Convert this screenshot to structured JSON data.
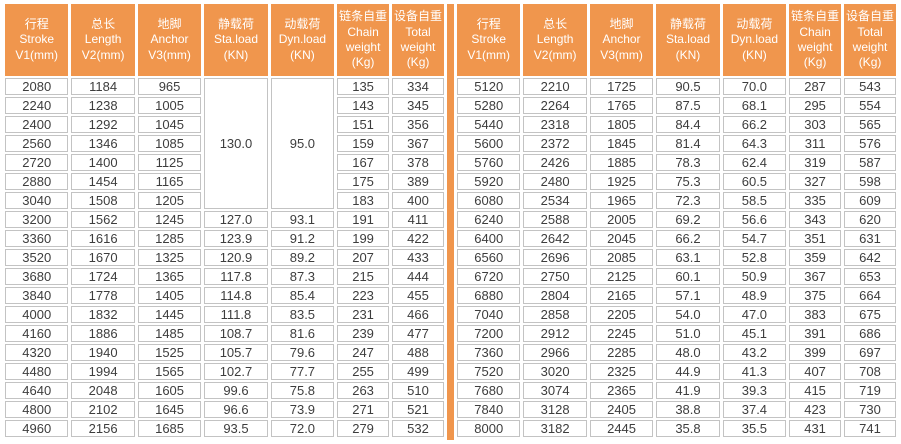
{
  "colors": {
    "header_bg": "#F0964D",
    "divider": "#F0964D",
    "cell_border": "#C3C3C3",
    "header_text": "#FFFFFF",
    "cell_text": "#3D3D3D"
  },
  "headers": [
    {
      "zh": "行程",
      "en": "Stroke",
      "unit": "V1(mm)"
    },
    {
      "zh": "总长",
      "en": "Length",
      "unit": "V2(mm)"
    },
    {
      "zh": "地脚",
      "en": "Anchor",
      "unit": "V3(mm)"
    },
    {
      "zh": "静载荷",
      "en": "Sta.load",
      "unit": "(KN)"
    },
    {
      "zh": "动载荷",
      "en": "Dyn.load",
      "unit": "(KN)"
    },
    {
      "zh": "链条自重",
      "en": "Chain weight",
      "unit": "(Kg)"
    },
    {
      "zh": "设备自重",
      "en": "Total weight",
      "unit": "(Kg)"
    }
  ],
  "left_table": {
    "merged_block": {
      "start_row": 0,
      "row_count": 7,
      "sta_load": "130.0",
      "dyn_load": "95.0"
    },
    "rows": [
      [
        "2080",
        "1184",
        "965",
        null,
        null,
        "135",
        "334"
      ],
      [
        "2240",
        "1238",
        "1005",
        null,
        null,
        "143",
        "345"
      ],
      [
        "2400",
        "1292",
        "1045",
        null,
        null,
        "151",
        "356"
      ],
      [
        "2560",
        "1346",
        "1085",
        null,
        null,
        "159",
        "367"
      ],
      [
        "2720",
        "1400",
        "1125",
        null,
        null,
        "167",
        "378"
      ],
      [
        "2880",
        "1454",
        "1165",
        null,
        null,
        "175",
        "389"
      ],
      [
        "3040",
        "1508",
        "1205",
        null,
        null,
        "183",
        "400"
      ],
      [
        "3200",
        "1562",
        "1245",
        "127.0",
        "93.1",
        "191",
        "411"
      ],
      [
        "3360",
        "1616",
        "1285",
        "123.9",
        "91.2",
        "199",
        "422"
      ],
      [
        "3520",
        "1670",
        "1325",
        "120.9",
        "89.2",
        "207",
        "433"
      ],
      [
        "3680",
        "1724",
        "1365",
        "117.8",
        "87.3",
        "215",
        "444"
      ],
      [
        "3840",
        "1778",
        "1405",
        "114.8",
        "85.4",
        "223",
        "455"
      ],
      [
        "4000",
        "1832",
        "1445",
        "111.8",
        "83.5",
        "231",
        "466"
      ],
      [
        "4160",
        "1886",
        "1485",
        "108.7",
        "81.6",
        "239",
        "477"
      ],
      [
        "4320",
        "1940",
        "1525",
        "105.7",
        "79.6",
        "247",
        "488"
      ],
      [
        "4480",
        "1994",
        "1565",
        "102.7",
        "77.7",
        "255",
        "499"
      ],
      [
        "4640",
        "2048",
        "1605",
        "99.6",
        "75.8",
        "263",
        "510"
      ],
      [
        "4800",
        "2102",
        "1645",
        "96.6",
        "73.9",
        "271",
        "521"
      ],
      [
        "4960",
        "2156",
        "1685",
        "93.5",
        "72.0",
        "279",
        "532"
      ]
    ]
  },
  "right_table": {
    "rows": [
      [
        "5120",
        "2210",
        "1725",
        "90.5",
        "70.0",
        "287",
        "543"
      ],
      [
        "5280",
        "2264",
        "1765",
        "87.5",
        "68.1",
        "295",
        "554"
      ],
      [
        "5440",
        "2318",
        "1805",
        "84.4",
        "66.2",
        "303",
        "565"
      ],
      [
        "5600",
        "2372",
        "1845",
        "81.4",
        "64.3",
        "311",
        "576"
      ],
      [
        "5760",
        "2426",
        "1885",
        "78.3",
        "62.4",
        "319",
        "587"
      ],
      [
        "5920",
        "2480",
        "1925",
        "75.3",
        "60.5",
        "327",
        "598"
      ],
      [
        "6080",
        "2534",
        "1965",
        "72.3",
        "58.5",
        "335",
        "609"
      ],
      [
        "6240",
        "2588",
        "2005",
        "69.2",
        "56.6",
        "343",
        "620"
      ],
      [
        "6400",
        "2642",
        "2045",
        "66.2",
        "54.7",
        "351",
        "631"
      ],
      [
        "6560",
        "2696",
        "2085",
        "63.1",
        "52.8",
        "359",
        "642"
      ],
      [
        "6720",
        "2750",
        "2125",
        "60.1",
        "50.9",
        "367",
        "653"
      ],
      [
        "6880",
        "2804",
        "2165",
        "57.1",
        "48.9",
        "375",
        "664"
      ],
      [
        "7040",
        "2858",
        "2205",
        "54.0",
        "47.0",
        "383",
        "675"
      ],
      [
        "7200",
        "2912",
        "2245",
        "51.0",
        "45.1",
        "391",
        "686"
      ],
      [
        "7360",
        "2966",
        "2285",
        "48.0",
        "43.2",
        "399",
        "697"
      ],
      [
        "7520",
        "3020",
        "2325",
        "44.9",
        "41.3",
        "407",
        "708"
      ],
      [
        "7680",
        "3074",
        "2365",
        "41.9",
        "39.3",
        "415",
        "719"
      ],
      [
        "7840",
        "3128",
        "2405",
        "38.8",
        "37.4",
        "423",
        "730"
      ],
      [
        "8000",
        "3182",
        "2445",
        "35.8",
        "35.5",
        "431",
        "741"
      ]
    ]
  }
}
